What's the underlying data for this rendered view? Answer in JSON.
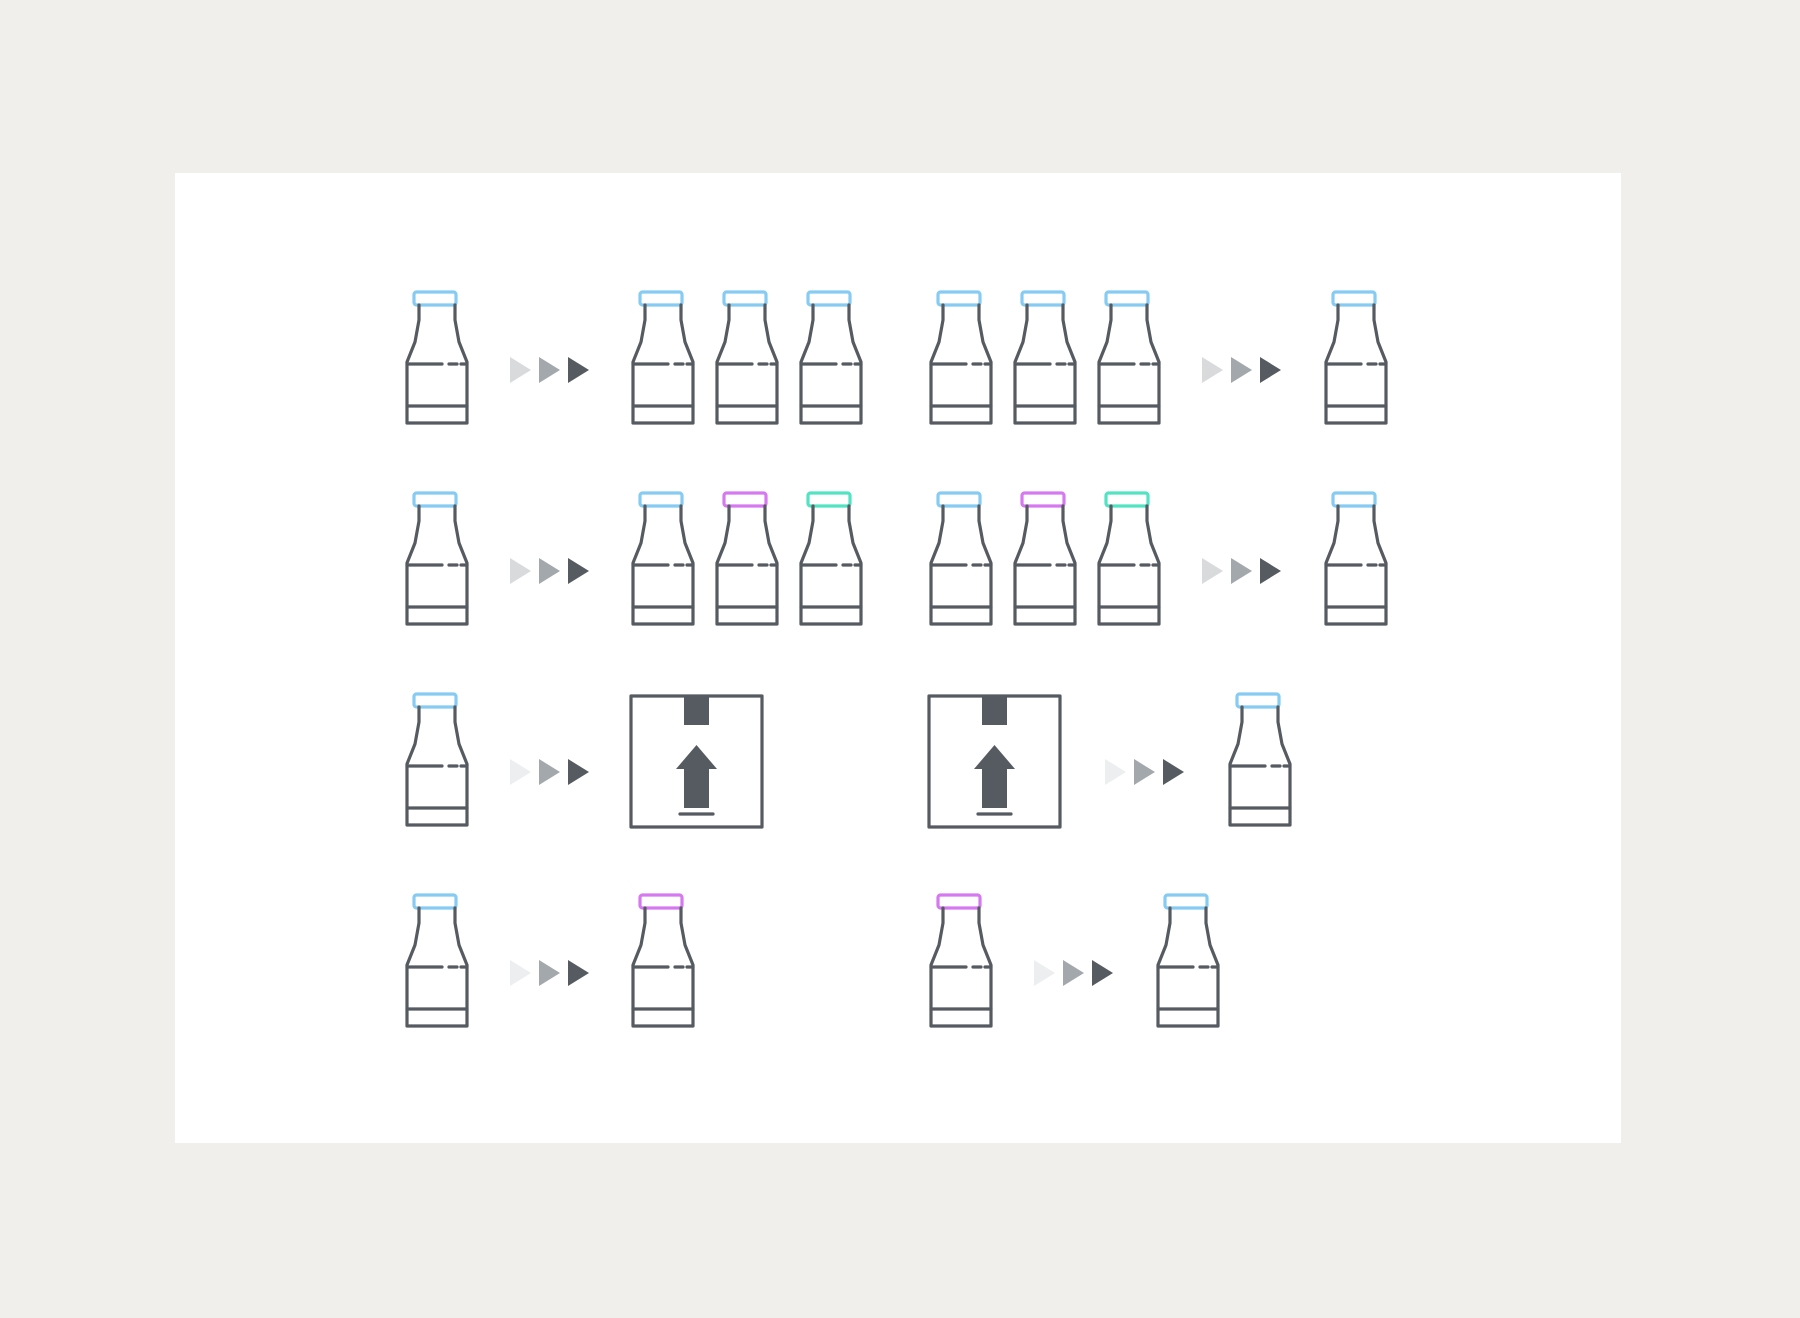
{
  "colors": {
    "background": "#f0efeb",
    "card": "#ffffff",
    "outline": "#555b60",
    "cap_blue": "#86cbf2",
    "cap_purple": "#d679f0",
    "cap_teal": "#52e3c2",
    "arrow_light": "#d8dadc",
    "arrow_mid": "#a3a8ac",
    "arrow_dark": "#555b60"
  },
  "icons": {
    "bottle": "bottle-icon",
    "box": "upload-box-icon",
    "arrow": "triple-arrow-icon"
  },
  "rows": [
    {
      "name": "fan-out-same",
      "left": {
        "from": [
          "blue"
        ],
        "to": [
          "blue",
          "blue",
          "blue"
        ]
      },
      "right": {
        "from": [
          "blue",
          "blue",
          "blue"
        ],
        "to": [
          "blue"
        ]
      }
    },
    {
      "name": "fan-out-varied",
      "left": {
        "from": [
          "blue"
        ],
        "to": [
          "blue",
          "purple",
          "teal"
        ]
      },
      "right": {
        "from": [
          "blue",
          "purple",
          "teal"
        ],
        "to": [
          "blue"
        ]
      }
    },
    {
      "name": "pack-unpack",
      "left": {
        "from": [
          "blue"
        ],
        "to": [
          "box"
        ]
      },
      "right": {
        "from": [
          "box"
        ],
        "to": [
          "blue"
        ]
      }
    },
    {
      "name": "swap-cap",
      "left": {
        "from": [
          "blue"
        ],
        "to": [
          "purple"
        ]
      },
      "right": {
        "from": [
          "purple"
        ],
        "to": [
          "blue"
        ]
      }
    }
  ]
}
